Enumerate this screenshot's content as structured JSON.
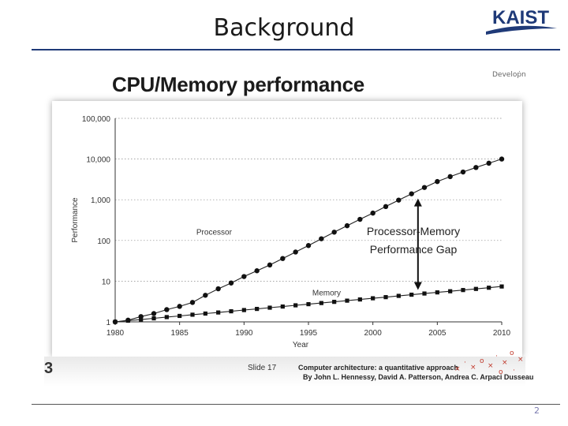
{
  "slide": {
    "title": "Background",
    "logo_text": "KAIST",
    "page_number": "2"
  },
  "embedded": {
    "title": "CPU/Memory performance",
    "corner_note": "Develoṗn",
    "footer_mark": "3",
    "slide_label": "Slide 17",
    "reference_title": "Computer architecture: a quantitative approach",
    "reference_authors": "By John L. Hennessy, David A. Patterson, Andrea C. Arpaci Dusseau"
  },
  "colors": {
    "title_rule": "#1f3a78",
    "kaist_blue": "#1f3a78",
    "marker": "#111111"
  },
  "chart_data": {
    "type": "line",
    "title": "CPU/Memory performance",
    "xlabel": "Year",
    "ylabel": "Performance",
    "yscale": "log",
    "xlim": [
      1980,
      2010
    ],
    "ylim": [
      1,
      100000
    ],
    "xticks": [
      1980,
      1985,
      1990,
      1995,
      2000,
      2005,
      2010
    ],
    "xtick_labels": [
      "1980",
      "1985",
      "1990",
      "1995",
      "2000",
      "2005",
      "2010"
    ],
    "yticks": [
      1,
      10,
      100,
      1000,
      10000,
      100000
    ],
    "ytick_labels": [
      "1",
      "10",
      "100",
      "1,000",
      "10,000",
      "100,000"
    ],
    "grid": "horizontal dotted",
    "annotation": {
      "line1": "Processor-Memory",
      "line2": "Performance Gap"
    },
    "series": [
      {
        "name": "Processor",
        "marker": "circle",
        "x": [
          1980,
          1981,
          1982,
          1983,
          1984,
          1985,
          1986,
          1987,
          1988,
          1989,
          1990,
          1991,
          1992,
          1993,
          1994,
          1995,
          1996,
          1997,
          1998,
          1999,
          2000,
          2001,
          2002,
          2003,
          2004,
          2005,
          2006,
          2007,
          2008,
          2009,
          2010
        ],
        "y": [
          1,
          1.1,
          1.35,
          1.6,
          2,
          2.4,
          3,
          4.5,
          6.5,
          9,
          13,
          18,
          25,
          36,
          52,
          75,
          110,
          160,
          230,
          330,
          470,
          680,
          980,
          1400,
          2000,
          2800,
          3700,
          4800,
          6200,
          7900,
          10000
        ]
      },
      {
        "name": "Memory",
        "marker": "square",
        "x": [
          1980,
          1981,
          1982,
          1983,
          1984,
          1985,
          1986,
          1987,
          1988,
          1989,
          1990,
          1991,
          1992,
          1993,
          1994,
          1995,
          1996,
          1997,
          1998,
          1999,
          2000,
          2001,
          2002,
          2003,
          2004,
          2005,
          2006,
          2007,
          2008,
          2009,
          2010
        ],
        "y": [
          1,
          1.07,
          1.14,
          1.22,
          1.31,
          1.4,
          1.5,
          1.6,
          1.7,
          1.82,
          1.95,
          2.08,
          2.23,
          2.38,
          2.55,
          2.72,
          2.9,
          3.1,
          3.32,
          3.55,
          3.8,
          4.05,
          4.35,
          4.65,
          4.97,
          5.3,
          5.65,
          6.05,
          6.45,
          6.9,
          7.4
        ]
      }
    ]
  }
}
